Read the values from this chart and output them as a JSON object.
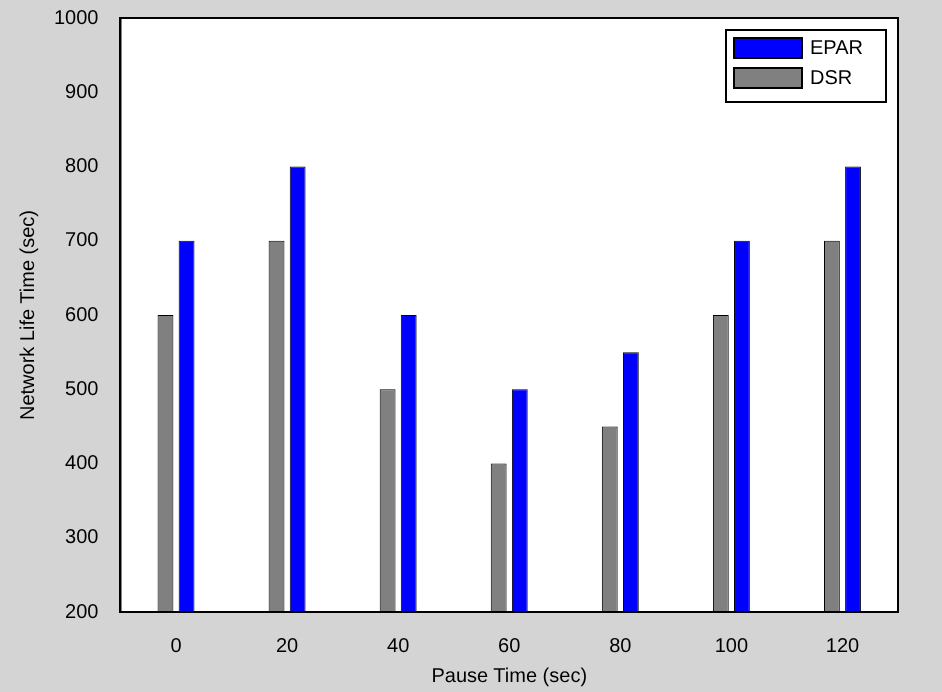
{
  "chart_data": {
    "type": "bar",
    "xlabel": "Pause Time (sec)",
    "ylabel": "Network Life Time (sec)",
    "categories": [
      "0",
      "20",
      "40",
      "60",
      "80",
      "100",
      "120"
    ],
    "series": [
      {
        "name": "DSR",
        "color": "#808080",
        "values": [
          600,
          700,
          500,
          400,
          450,
          600,
          700
        ]
      },
      {
        "name": "EPAR",
        "color": "#0000ff",
        "values": [
          700,
          800,
          600,
          500,
          550,
          700,
          800
        ]
      }
    ],
    "ylim": [
      200,
      1000
    ],
    "yticks": [
      200,
      300,
      400,
      500,
      600,
      700,
      800,
      900,
      1000
    ],
    "grid": false,
    "legend": "top right"
  }
}
